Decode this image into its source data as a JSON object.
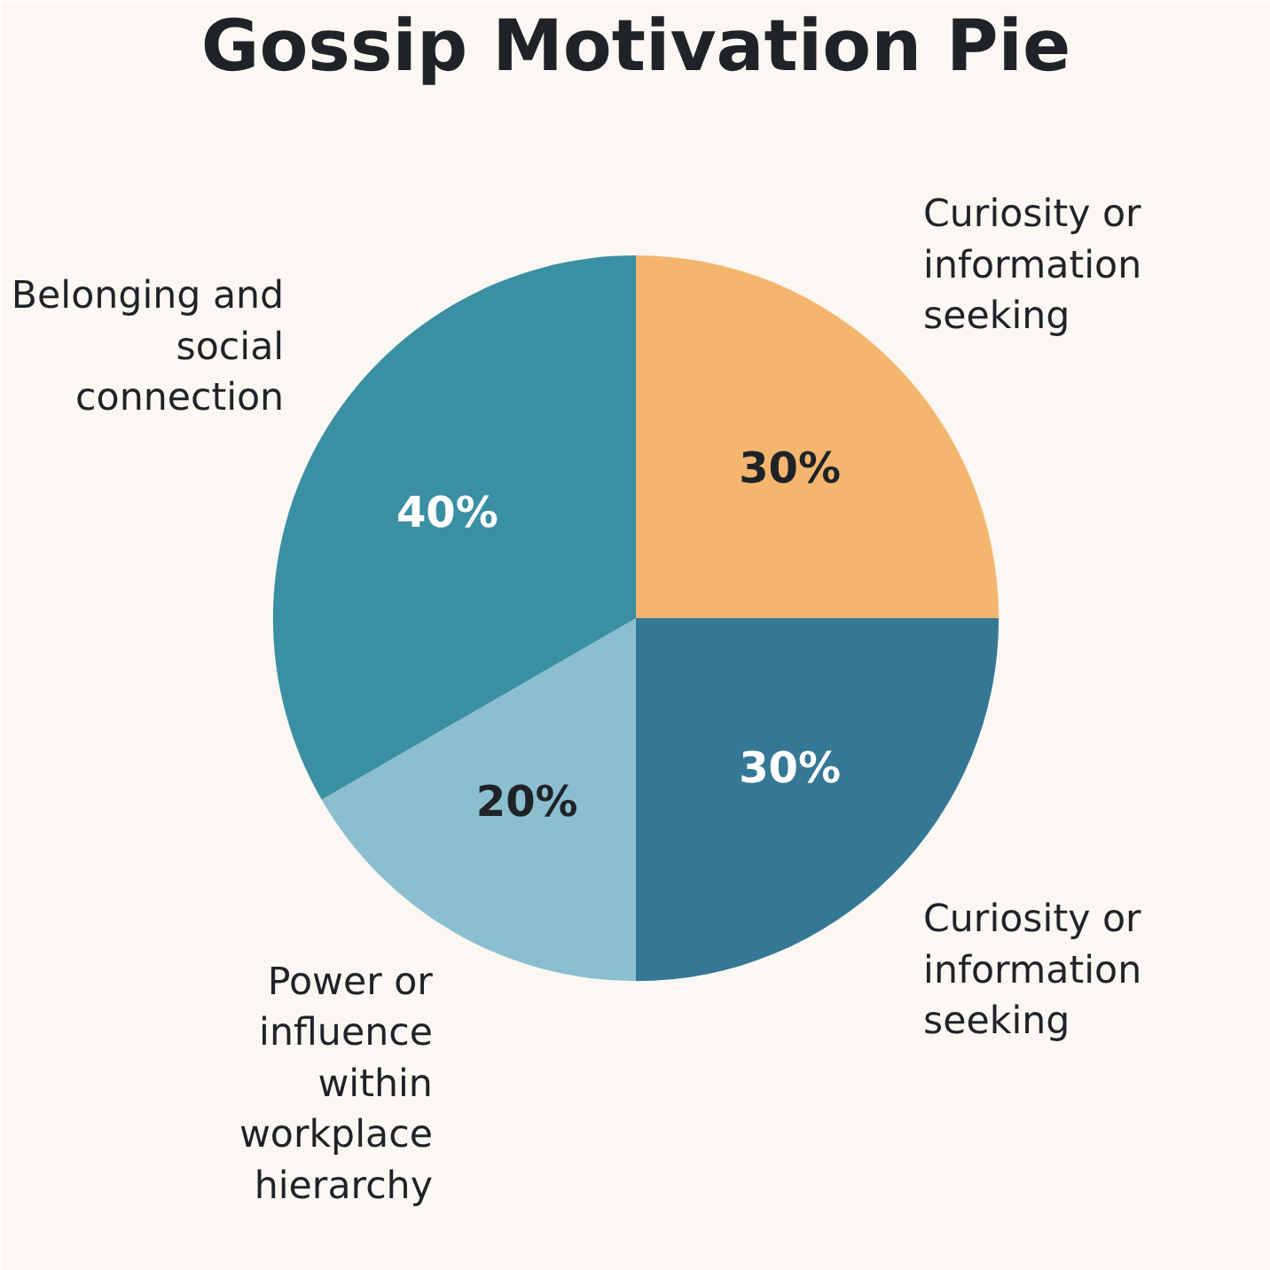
{
  "chart_data": {
    "type": "pie",
    "title": "Gossip Motivation Pie",
    "categories": [
      "Curiosity or information seeking",
      "Curiosity or information seeking",
      "Power or influence within workplace hierarchy",
      "Belonging and social connection"
    ],
    "values": [
      30,
      30,
      20,
      40
    ],
    "value_labels": [
      "30%",
      "30%",
      "20%",
      "40%"
    ],
    "colors": [
      "#f4b66f",
      "#357895",
      "#8bbfcf",
      "#3a8fa3"
    ]
  }
}
